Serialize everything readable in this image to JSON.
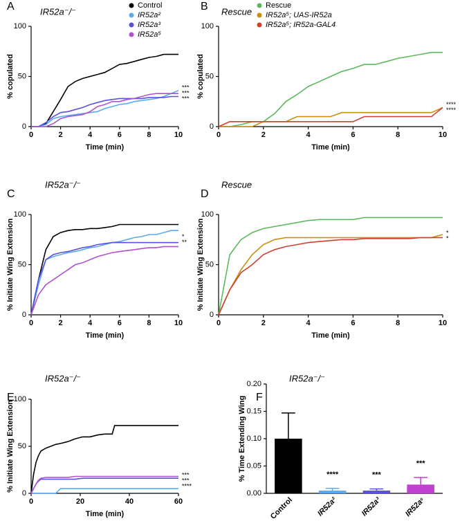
{
  "chart_data": [
    {
      "type": "line",
      "panel": "A",
      "title": "IR52a⁻/⁻",
      "title_color": "#6a5ad0",
      "xlabel": "Time (min)",
      "ylabel": "% copulated",
      "xlim": [
        0,
        10
      ],
      "ylim": [
        0,
        100
      ],
      "xticks": [
        0,
        2,
        4,
        6,
        8,
        10
      ],
      "yticks": [
        0,
        50,
        100
      ],
      "x": [
        0,
        0.5,
        1,
        1.5,
        2,
        2.5,
        3,
        3.5,
        4,
        4.5,
        5,
        5.5,
        6,
        6.5,
        7,
        7.5,
        8,
        8.5,
        9,
        9.5,
        10
      ],
      "series": [
        {
          "name": "Control",
          "color": "#000000",
          "values": [
            0,
            0,
            3,
            15,
            27,
            40,
            45,
            48,
            50,
            52,
            54,
            58,
            62,
            63,
            65,
            67,
            69,
            70,
            72,
            72,
            72
          ]
        },
        {
          "name": "IR52a²",
          "color": "#5aaaf0",
          "values": [
            0,
            0,
            2,
            8,
            10,
            11,
            12,
            13,
            14,
            15,
            18,
            20,
            22,
            23,
            25,
            26,
            27,
            28,
            30,
            33,
            36
          ]
        },
        {
          "name": "IR52a³",
          "color": "#5a50e0",
          "values": [
            0,
            0,
            4,
            10,
            14,
            15,
            17,
            19,
            22,
            24,
            26,
            27,
            28,
            28,
            28,
            28,
            29,
            29,
            29,
            30,
            30
          ]
        },
        {
          "name": "IR52a⁵",
          "color": "#b050d0",
          "values": [
            0,
            0,
            0,
            3,
            8,
            10,
            11,
            12,
            15,
            20,
            22,
            25,
            25,
            27,
            28,
            30,
            32,
            33,
            33,
            33,
            33
          ]
        }
      ],
      "annotations": [
        "***",
        "***",
        "***"
      ]
    },
    {
      "type": "line",
      "panel": "B",
      "title": "Rescue",
      "title_color": "#5cb85c",
      "xlabel": "Time (min)",
      "ylabel": "% copulated",
      "xlim": [
        0,
        10
      ],
      "ylim": [
        0,
        100
      ],
      "xticks": [
        0,
        2,
        4,
        6,
        8,
        10
      ],
      "yticks": [
        0,
        50,
        100
      ],
      "x": [
        0,
        0.5,
        1,
        1.5,
        2,
        2.5,
        3,
        3.5,
        4,
        4.5,
        5,
        5.5,
        6,
        6.5,
        7,
        7.5,
        8,
        8.5,
        9,
        9.5,
        10
      ],
      "series": [
        {
          "name": "Rescue",
          "color": "#5cb85c",
          "values": [
            0,
            0,
            2,
            5,
            5,
            13,
            25,
            32,
            40,
            45,
            50,
            55,
            58,
            62,
            62,
            65,
            68,
            70,
            72,
            74,
            74
          ]
        },
        {
          "name": "IR52a⁵; UAS-IR52a",
          "color": "#c8900a",
          "values": [
            0,
            0,
            0,
            0,
            5,
            5,
            5,
            10,
            10,
            10,
            10,
            14,
            14,
            14,
            14,
            14,
            14,
            14,
            14,
            14,
            19
          ]
        },
        {
          "name": "IR52a⁵; IR52a-GAL4",
          "color": "#d04030",
          "values": [
            0,
            5,
            5,
            5,
            5,
            5,
            5,
            5,
            5,
            5,
            5,
            5,
            5,
            10,
            10,
            10,
            10,
            10,
            10,
            10,
            19
          ]
        }
      ],
      "annotations": [
        "****",
        "****"
      ]
    },
    {
      "type": "line",
      "panel": "C",
      "title": "IR52a⁻/⁻",
      "title_color": "#6a5ad0",
      "xlabel": "Time (min)",
      "ylabel": "% Initiate Wing Extension",
      "xlim": [
        0,
        10
      ],
      "ylim": [
        0,
        100
      ],
      "xticks": [
        0,
        2,
        4,
        6,
        8,
        10
      ],
      "yticks": [
        0,
        50,
        100
      ],
      "x": [
        0,
        0.5,
        1,
        1.5,
        2,
        2.5,
        3,
        3.5,
        4,
        4.5,
        5,
        5.5,
        6,
        6.5,
        7,
        7.5,
        8,
        8.5,
        9,
        9.5,
        10
      ],
      "series": [
        {
          "color": "#000000",
          "values": [
            0,
            35,
            65,
            78,
            82,
            84,
            85,
            85,
            86,
            86,
            87,
            88,
            90,
            90,
            90,
            90,
            90,
            90,
            90,
            90,
            90
          ]
        },
        {
          "color": "#5aaaf0",
          "values": [
            0,
            30,
            55,
            58,
            60,
            62,
            63,
            65,
            67,
            68,
            70,
            72,
            73,
            75,
            77,
            78,
            80,
            80,
            82,
            84,
            84
          ]
        },
        {
          "color": "#5a50e0",
          "values": [
            0,
            35,
            55,
            60,
            62,
            63,
            65,
            67,
            68,
            70,
            71,
            72,
            72,
            72,
            72,
            72,
            72,
            72,
            72,
            72,
            72
          ]
        },
        {
          "color": "#b050d0",
          "values": [
            0,
            20,
            30,
            35,
            40,
            45,
            50,
            52,
            55,
            58,
            60,
            62,
            63,
            64,
            65,
            66,
            67,
            67,
            68,
            68,
            68
          ]
        }
      ],
      "annotations": [
        "*",
        "**"
      ]
    },
    {
      "type": "line",
      "panel": "D",
      "title": "Rescue",
      "title_color": "#5cb85c",
      "xlabel": "Time (min)",
      "ylabel": "% Initiate Wing Extension",
      "xlim": [
        0,
        10
      ],
      "ylim": [
        0,
        100
      ],
      "xticks": [
        0,
        2,
        4,
        6,
        8,
        10
      ],
      "yticks": [
        0,
        50,
        100
      ],
      "x": [
        0,
        0.5,
        1,
        1.5,
        2,
        2.5,
        3,
        3.5,
        4,
        4.5,
        5,
        5.5,
        6,
        6.5,
        7,
        7.5,
        8,
        8.5,
        9,
        9.5,
        10
      ],
      "series": [
        {
          "color": "#5cb85c",
          "values": [
            0,
            60,
            75,
            82,
            86,
            88,
            90,
            92,
            94,
            95,
            95,
            95,
            95,
            97,
            97,
            97,
            97,
            97,
            97,
            97,
            97
          ]
        },
        {
          "color": "#c8900a",
          "values": [
            0,
            25,
            45,
            60,
            70,
            75,
            77,
            77,
            77,
            77,
            77,
            77,
            77,
            77,
            77,
            77,
            77,
            77,
            77,
            77,
            80
          ]
        },
        {
          "color": "#d04030",
          "values": [
            0,
            25,
            42,
            50,
            60,
            65,
            68,
            70,
            72,
            73,
            74,
            75,
            75,
            76,
            76,
            76,
            76,
            76,
            77,
            77,
            77
          ]
        }
      ],
      "annotations": [
        "*",
        "*"
      ]
    },
    {
      "type": "line",
      "panel": "E",
      "title": "IR52a⁻/⁻",
      "title_color": "#6a5ad0",
      "xlabel": "Time (min)",
      "ylabel": "% Initiate Wing Extension",
      "xlim": [
        0,
        60
      ],
      "ylim": [
        0,
        100
      ],
      "xticks": [
        0,
        20,
        40,
        60
      ],
      "yticks": [
        0,
        50,
        100
      ],
      "x": [
        0,
        1,
        2,
        3,
        4,
        6,
        8,
        10,
        12,
        15,
        18,
        21,
        24,
        27,
        30,
        33,
        34,
        40,
        45,
        50,
        55,
        60
      ],
      "series": [
        {
          "color": "#000000",
          "values": [
            0,
            20,
            33,
            40,
            45,
            48,
            50,
            52,
            53,
            55,
            58,
            60,
            60,
            62,
            63,
            63,
            72,
            72,
            72,
            72,
            72,
            72
          ]
        },
        {
          "color": "#5aaaf0",
          "values": [
            0,
            0,
            0,
            0,
            0,
            0,
            0,
            0,
            5,
            5,
            5,
            5,
            5,
            5,
            5,
            5,
            5,
            5,
            5,
            5,
            5,
            5
          ]
        },
        {
          "color": "#5a50e0",
          "values": [
            0,
            5,
            10,
            13,
            15,
            15,
            15,
            15,
            15,
            15,
            15,
            16,
            16,
            16,
            16,
            16,
            16,
            16,
            16,
            16,
            16,
            16
          ]
        },
        {
          "color": "#b050d0",
          "values": [
            0,
            5,
            10,
            14,
            16,
            17,
            17,
            17,
            17,
            17,
            18,
            18,
            18,
            18,
            18,
            18,
            18,
            18,
            18,
            18,
            18,
            18
          ]
        }
      ],
      "annotations": [
        "***",
        "***",
        "****"
      ]
    },
    {
      "type": "bar",
      "panel": "F",
      "title": "IR52a⁻/⁻",
      "title_color": "#6a5ad0",
      "ylabel": "% Time Extending Wing",
      "ylim": [
        0,
        0.2
      ],
      "yticks": [
        {
          "value": 0,
          "label": "0.00"
        },
        {
          "value": 0.05,
          "label": "0.05"
        },
        {
          "value": 0.1,
          "label": "0.10"
        },
        {
          "value": 0.15,
          "label": "0.15"
        },
        {
          "value": 0.2,
          "label": "0.20"
        }
      ],
      "categories": [
        "Control",
        "IR52a²",
        "IR52a³",
        "IR52a⁵"
      ],
      "values": [
        0.1,
        0.005,
        0.005,
        0.016
      ],
      "errors": [
        0.047,
        0.004,
        0.003,
        0.013
      ],
      "colors": [
        "#000000",
        "#5aaaf0",
        "#5a50e0",
        "#c040d0"
      ],
      "annotations": [
        null,
        "****",
        "***",
        "***"
      ]
    }
  ]
}
